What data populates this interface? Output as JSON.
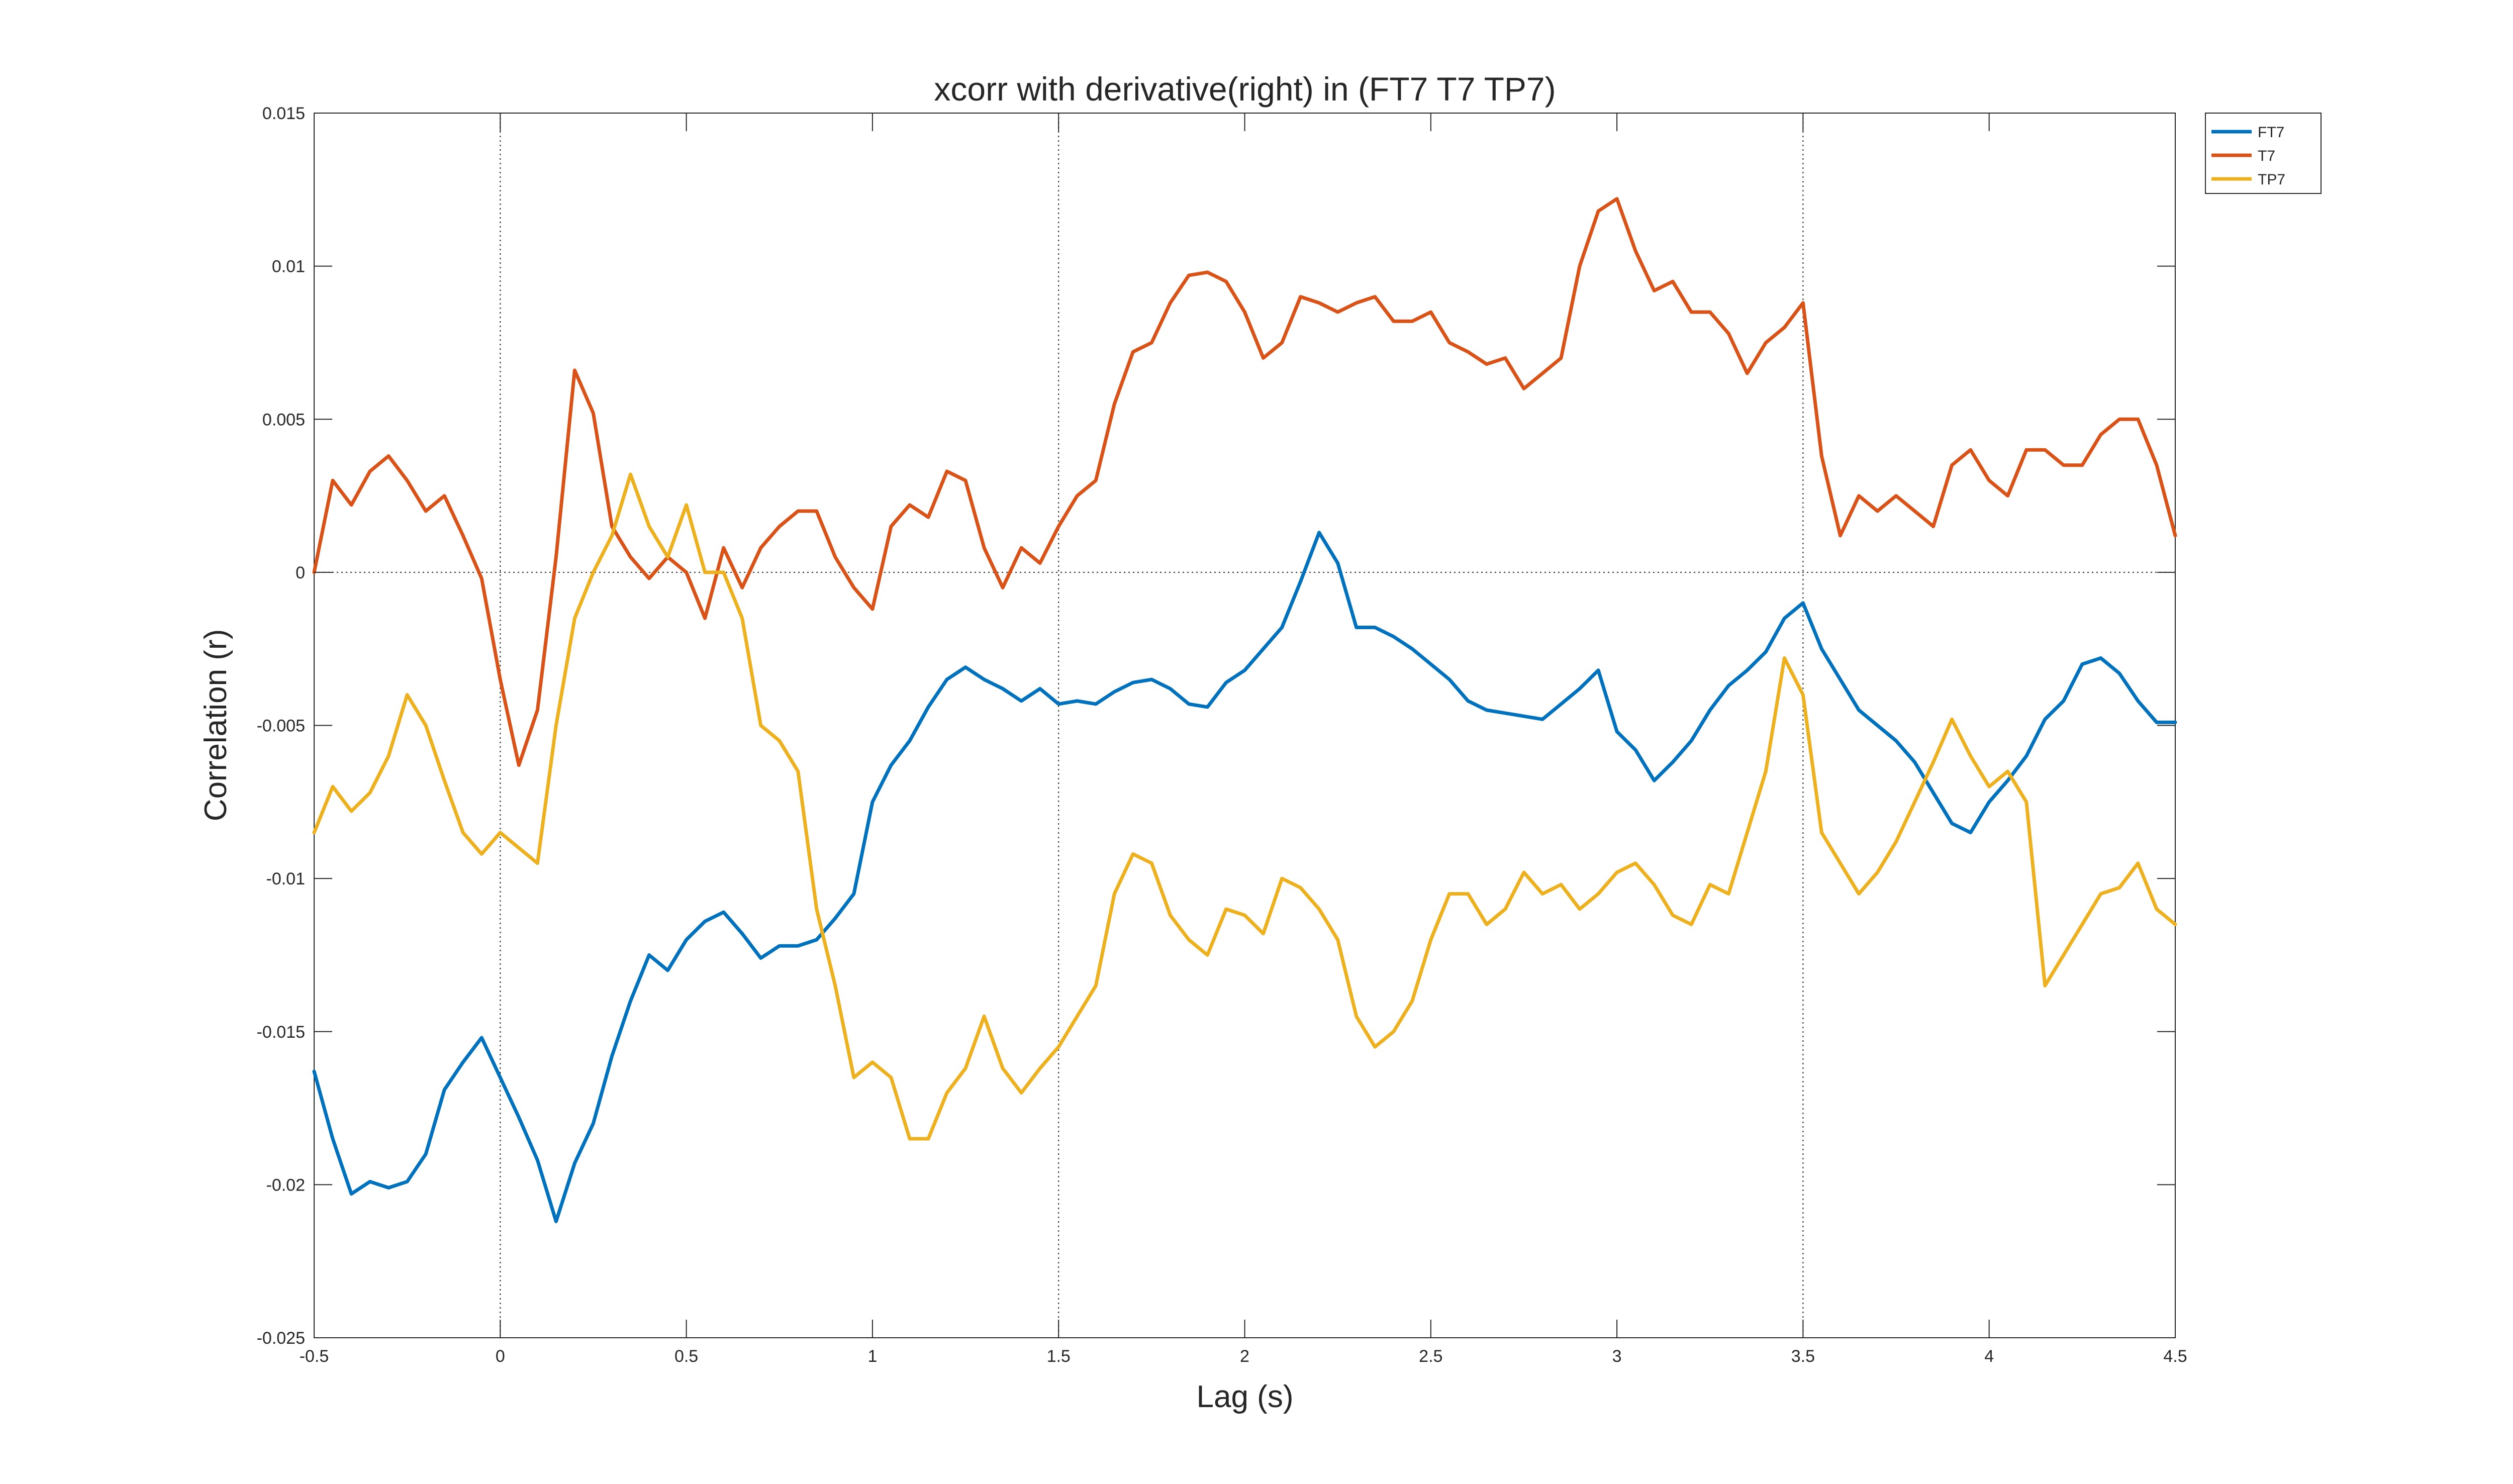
{
  "chart_data": {
    "type": "line",
    "title": "xcorr with derivative(right) in (FT7 T7 TP7)",
    "xlabel": "Lag (s)",
    "ylabel": "Correlation (r)",
    "xlim": [
      -0.5,
      4.5
    ],
    "ylim": [
      -0.025,
      0.015
    ],
    "xticks": [
      -0.5,
      0,
      0.5,
      1,
      1.5,
      2,
      2.5,
      3,
      3.5,
      4,
      4.5
    ],
    "xtick_labels": [
      "-0.5",
      "0",
      "0.5",
      "1",
      "1.5",
      "2",
      "2.5",
      "3",
      "3.5",
      "4",
      "4.5"
    ],
    "yticks": [
      -0.025,
      -0.02,
      -0.015,
      -0.01,
      -0.005,
      0,
      0.005,
      0.01,
      0.015
    ],
    "ytick_labels": [
      "-0.025",
      "-0.02",
      "-0.015",
      "-0.01",
      "-0.005",
      "0",
      "0.005",
      "0.01",
      "0.015"
    ],
    "reference_lines": {
      "x": [
        0,
        1.5,
        3.5
      ],
      "y": [
        0
      ]
    },
    "grid": false,
    "legend": "outside-top-right",
    "series": [
      {
        "name": "FT7",
        "color": "#0072BD",
        "x": [
          -0.5,
          -0.45,
          -0.4,
          -0.35,
          -0.3,
          -0.25,
          -0.2,
          -0.15,
          -0.1,
          -0.05,
          0,
          0.05,
          0.1,
          0.15,
          0.2,
          0.25,
          0.3,
          0.35,
          0.4,
          0.45,
          0.5,
          0.55,
          0.6,
          0.65,
          0.7,
          0.75,
          0.8,
          0.85,
          0.9,
          0.95,
          1,
          1.05,
          1.1,
          1.15,
          1.2,
          1.25,
          1.3,
          1.35,
          1.4,
          1.45,
          1.5,
          1.55,
          1.6,
          1.65,
          1.7,
          1.75,
          1.8,
          1.85,
          1.9,
          1.95,
          2,
          2.05,
          2.1,
          2.15,
          2.2,
          2.25,
          2.3,
          2.35,
          2.4,
          2.45,
          2.5,
          2.55,
          2.6,
          2.65,
          2.7,
          2.75,
          2.8,
          2.85,
          2.9,
          2.95,
          3,
          3.05,
          3.1,
          3.15,
          3.2,
          3.25,
          3.3,
          3.35,
          3.4,
          3.45,
          3.5,
          3.55,
          3.6,
          3.65,
          3.7,
          3.75,
          3.8,
          3.85,
          3.9,
          3.95,
          4,
          4.05,
          4.1,
          4.15,
          4.2,
          4.25,
          4.3,
          4.35,
          4.4,
          4.45,
          4.5
        ],
        "y": [
          -0.0163,
          -0.0185,
          -0.0203,
          -0.0199,
          -0.0201,
          -0.0199,
          -0.019,
          -0.0169,
          -0.016,
          -0.0152,
          -0.0165,
          -0.0178,
          -0.0192,
          -0.0212,
          -0.0193,
          -0.018,
          -0.0158,
          -0.014,
          -0.0125,
          -0.013,
          -0.012,
          -0.0114,
          -0.0111,
          -0.0118,
          -0.0126,
          -0.0122,
          -0.0122,
          -0.012,
          -0.0113,
          -0.0105,
          -0.0075,
          -0.0063,
          -0.0055,
          -0.0044,
          -0.0035,
          -0.0031,
          -0.0035,
          -0.0038,
          -0.0042,
          -0.0038,
          -0.0043,
          -0.0042,
          -0.0043,
          -0.0039,
          -0.0036,
          -0.0035,
          -0.0038,
          -0.0043,
          -0.0044,
          -0.0036,
          -0.0032,
          -0.0025,
          -0.0018,
          -0.0003,
          0.0013,
          0.0003,
          -0.0018,
          -0.0018,
          -0.0021,
          -0.0025,
          -0.003,
          -0.0035,
          -0.0042,
          -0.0045,
          -0.0046,
          -0.0047,
          -0.0048,
          -0.0043,
          -0.0038,
          -0.0032,
          -0.0052,
          -0.0058,
          -0.0068,
          -0.0062,
          -0.0055,
          -0.0045,
          -0.0037,
          -0.0032,
          -0.0026,
          -0.0015,
          -0.001,
          -0.0025,
          -0.0035,
          -0.0045,
          -0.005,
          -0.0055,
          -0.0062,
          -0.0072,
          -0.0082,
          -0.0085,
          -0.0075,
          -0.0068,
          -0.006,
          -0.0048,
          -0.0042,
          -0.003,
          -0.0028,
          -0.0033,
          -0.0042,
          -0.0049,
          -0.0049
        ]
      },
      {
        "name": "T7",
        "color": "#D95319",
        "x": [
          -0.5,
          -0.45,
          -0.4,
          -0.35,
          -0.3,
          -0.25,
          -0.2,
          -0.15,
          -0.1,
          -0.05,
          0,
          0.05,
          0.1,
          0.15,
          0.2,
          0.25,
          0.3,
          0.35,
          0.4,
          0.45,
          0.5,
          0.55,
          0.6,
          0.65,
          0.7,
          0.75,
          0.8,
          0.85,
          0.9,
          0.95,
          1,
          1.05,
          1.1,
          1.15,
          1.2,
          1.25,
          1.3,
          1.35,
          1.4,
          1.45,
          1.5,
          1.55,
          1.6,
          1.65,
          1.7,
          1.75,
          1.8,
          1.85,
          1.9,
          1.95,
          2,
          2.05,
          2.1,
          2.15,
          2.2,
          2.25,
          2.3,
          2.35,
          2.4,
          2.45,
          2.5,
          2.55,
          2.6,
          2.65,
          2.7,
          2.75,
          2.8,
          2.85,
          2.9,
          2.95,
          3,
          3.05,
          3.1,
          3.15,
          3.2,
          3.25,
          3.3,
          3.35,
          3.4,
          3.45,
          3.5,
          3.55,
          3.6,
          3.65,
          3.7,
          3.75,
          3.8,
          3.85,
          3.9,
          3.95,
          4,
          4.05,
          4.1,
          4.15,
          4.2,
          4.25,
          4.3,
          4.35,
          4.4,
          4.45,
          4.5
        ],
        "y": [
          0,
          0.003,
          0.0022,
          0.0033,
          0.0038,
          0.003,
          0.002,
          0.0025,
          0.0012,
          -0.0002,
          -0.0035,
          -0.0063,
          -0.0045,
          0.0005,
          0.0066,
          0.0052,
          0.0015,
          0.0005,
          -0.0002,
          0.0005,
          0.0,
          -0.0015,
          0.0008,
          -0.0005,
          0.0008,
          0.0015,
          0.002,
          0.002,
          0.0005,
          -0.0005,
          -0.0012,
          0.0015,
          0.0022,
          0.0018,
          0.0033,
          0.003,
          0.0008,
          -0.0005,
          0.0008,
          0.0003,
          0.0015,
          0.0025,
          0.003,
          0.0055,
          0.0072,
          0.0075,
          0.0088,
          0.0097,
          0.0098,
          0.0095,
          0.0085,
          0.007,
          0.0075,
          0.009,
          0.0088,
          0.0085,
          0.0088,
          0.009,
          0.0082,
          0.0082,
          0.0085,
          0.0075,
          0.0072,
          0.0068,
          0.007,
          0.006,
          0.0065,
          0.007,
          0.01,
          0.0118,
          0.0122,
          0.0105,
          0.0092,
          0.0095,
          0.0085,
          0.0085,
          0.0078,
          0.0065,
          0.0075,
          0.008,
          0.0088,
          0.0038,
          0.0012,
          0.0025,
          0.002,
          0.0025,
          0.002,
          0.0015,
          0.0035,
          0.004,
          0.003,
          0.0025,
          0.004,
          0.004,
          0.0035,
          0.0035,
          0.0045,
          0.005,
          0.005,
          0.0035,
          0.0012
        ]
      },
      {
        "name": "TP7",
        "color": "#EDB120",
        "x": [
          -0.5,
          -0.45,
          -0.4,
          -0.35,
          -0.3,
          -0.25,
          -0.2,
          -0.15,
          -0.1,
          -0.05,
          0,
          0.05,
          0.1,
          0.15,
          0.2,
          0.25,
          0.3,
          0.35,
          0.4,
          0.45,
          0.5,
          0.55,
          0.6,
          0.65,
          0.7,
          0.75,
          0.8,
          0.85,
          0.9,
          0.95,
          1,
          1.05,
          1.1,
          1.15,
          1.2,
          1.25,
          1.3,
          1.35,
          1.4,
          1.45,
          1.5,
          1.55,
          1.6,
          1.65,
          1.7,
          1.75,
          1.8,
          1.85,
          1.9,
          1.95,
          2,
          2.05,
          2.1,
          2.15,
          2.2,
          2.25,
          2.3,
          2.35,
          2.4,
          2.45,
          2.5,
          2.55,
          2.6,
          2.65,
          2.7,
          2.75,
          2.8,
          2.85,
          2.9,
          2.95,
          3,
          3.05,
          3.1,
          3.15,
          3.2,
          3.25,
          3.3,
          3.35,
          3.4,
          3.45,
          3.5,
          3.55,
          3.6,
          3.65,
          3.7,
          3.75,
          3.8,
          3.85,
          3.9,
          3.95,
          4,
          4.05,
          4.1,
          4.15,
          4.2,
          4.25,
          4.3,
          4.35,
          4.4,
          4.45,
          4.5
        ],
        "y": [
          -0.0085,
          -0.007,
          -0.0078,
          -0.0072,
          -0.006,
          -0.004,
          -0.005,
          -0.0068,
          -0.0085,
          -0.0092,
          -0.0085,
          -0.009,
          -0.0095,
          -0.005,
          -0.0015,
          0.0,
          0.0012,
          0.0032,
          0.0015,
          0.0005,
          0.0022,
          0.0,
          0.0,
          -0.0015,
          -0.005,
          -0.0055,
          -0.0065,
          -0.011,
          -0.0135,
          -0.0165,
          -0.016,
          -0.0165,
          -0.0185,
          -0.0185,
          -0.017,
          -0.0162,
          -0.0145,
          -0.0162,
          -0.017,
          -0.0162,
          -0.0155,
          -0.0145,
          -0.0135,
          -0.0105,
          -0.0092,
          -0.0095,
          -0.0112,
          -0.012,
          -0.0125,
          -0.011,
          -0.0112,
          -0.0118,
          -0.01,
          -0.0103,
          -0.011,
          -0.012,
          -0.0145,
          -0.0155,
          -0.015,
          -0.014,
          -0.012,
          -0.0105,
          -0.0105,
          -0.0115,
          -0.011,
          -0.0098,
          -0.0105,
          -0.0102,
          -0.011,
          -0.0105,
          -0.0098,
          -0.0095,
          -0.0102,
          -0.0112,
          -0.0115,
          -0.0102,
          -0.0105,
          -0.0085,
          -0.0065,
          -0.0028,
          -0.004,
          -0.0085,
          -0.0095,
          -0.0105,
          -0.0098,
          -0.0088,
          -0.0075,
          -0.0062,
          -0.0048,
          -0.006,
          -0.007,
          -0.0065,
          -0.0075,
          -0.0135,
          -0.0125,
          -0.0115,
          -0.0105,
          -0.0103,
          -0.0095,
          -0.011,
          -0.0115
        ]
      }
    ]
  }
}
